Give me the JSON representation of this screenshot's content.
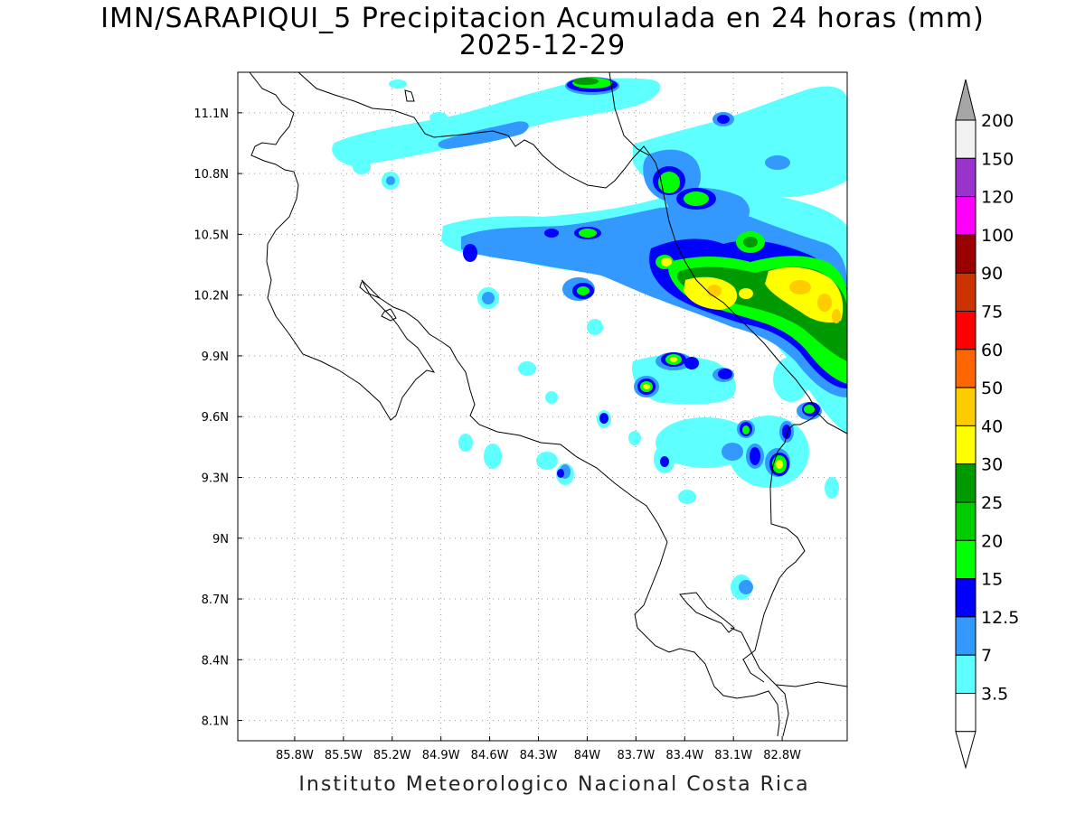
{
  "title": {
    "line1": "IMN/SARAPIQUI_5 Precipitacion Acumulada en 24 horas (mm)",
    "line2": "2025-12-29"
  },
  "footer": "Instituto Meteorologico Nacional Costa Rica",
  "map": {
    "lon_range": [
      -86.15,
      -82.4
    ],
    "lat_range": [
      8.0,
      11.3
    ],
    "x_ticks": [
      "85.8W",
      "85.5W",
      "85.2W",
      "84.9W",
      "84.6W",
      "84.3W",
      "84W",
      "83.7W",
      "83.4W",
      "83.1W",
      "82.8W"
    ],
    "x_tick_values": [
      -85.8,
      -85.5,
      -85.2,
      -84.9,
      -84.6,
      -84.3,
      -84.0,
      -83.7,
      -83.4,
      -83.1,
      -82.8
    ],
    "y_ticks": [
      "11.1N",
      "10.8N",
      "10.5N",
      "10.2N",
      "9.9N",
      "9.6N",
      "9.3N",
      "9N",
      "8.7N",
      "8.4N",
      "8.1N"
    ],
    "y_tick_values": [
      11.1,
      10.8,
      10.5,
      10.2,
      9.9,
      9.6,
      9.3,
      9.0,
      8.7,
      8.4,
      8.1
    ],
    "grid": "dotted"
  },
  "colorbar": {
    "labels": [
      "3.5",
      "7",
      "12.5",
      "15",
      "20",
      "25",
      "30",
      "40",
      "50",
      "60",
      "75",
      "90",
      "100",
      "120",
      "150",
      "200"
    ],
    "colors": [
      "#ffffff",
      "#5effff",
      "#3399ff",
      "#0000ff",
      "#00ff00",
      "#00cc00",
      "#009900",
      "#ffff00",
      "#ffcc00",
      "#ff6600",
      "#ff0000",
      "#cc3300",
      "#990000",
      "#ff00ff",
      "#9933cc",
      "#f2f2f2"
    ],
    "over_color": "#a6a6a6",
    "under_color": "#ffffff"
  }
}
